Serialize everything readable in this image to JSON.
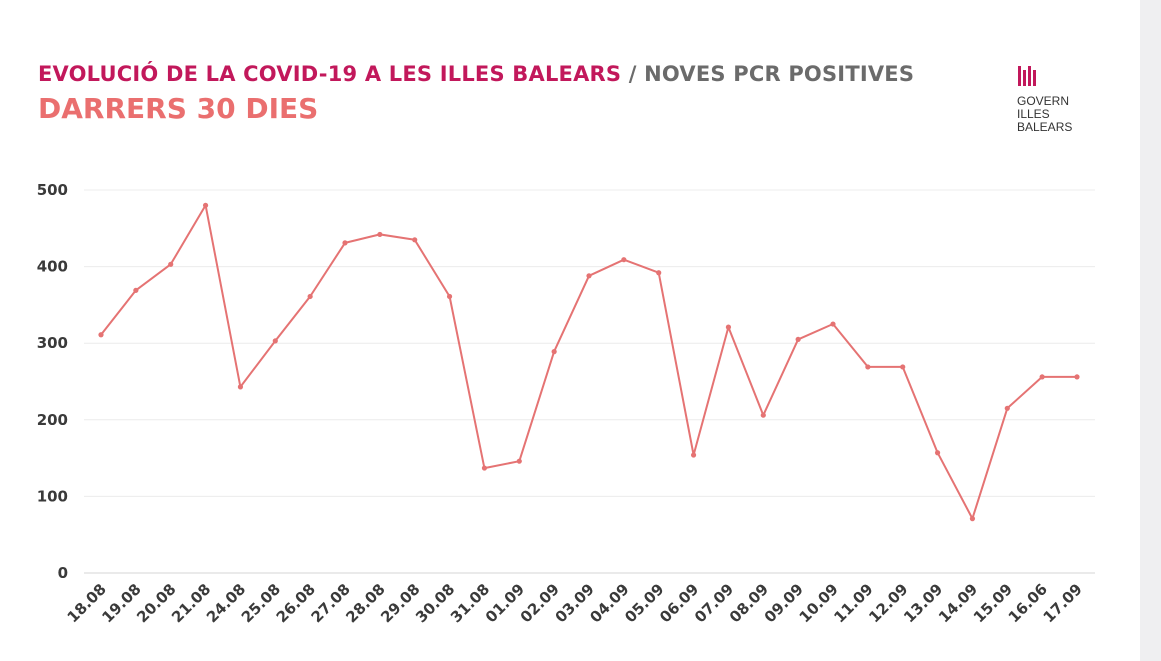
{
  "header": {
    "title_main": "EVOLUCIÓ DE LA COVID-19 A LES ILLES BALEARS",
    "title_sep": "/",
    "title_sub": "NOVES PCR POSITIVES",
    "subtitle": "DARRERS 30 DIES"
  },
  "logo": {
    "line1": "GOVERN",
    "line2": "ILLES",
    "line3": "BALEARS"
  },
  "colors": {
    "line": "#e57373",
    "title": "#c2185b",
    "subtitle": "#ea6f6f",
    "grid": "#ececec"
  },
  "chart_data": {
    "type": "line",
    "title": "",
    "xlabel": "",
    "ylabel": "",
    "ylim": [
      0,
      500
    ],
    "yticks": [
      0,
      100,
      200,
      300,
      400,
      500
    ],
    "grid": true,
    "categories": [
      "18.08",
      "19.08",
      "20.08",
      "21.08",
      "24.08",
      "25.08",
      "26.08",
      "27.08",
      "28.08",
      "29.08",
      "30.08",
      "31.08",
      "01.09",
      "02.09",
      "03.09",
      "04.09",
      "05.09",
      "06.09",
      "07.09",
      "08.09",
      "09.09",
      "10.09",
      "11.09",
      "12.09",
      "13.09",
      "14.09",
      "15.09",
      "16.06",
      "17.09"
    ],
    "series": [
      {
        "values": [
          311,
          369,
          403,
          480,
          243,
          303,
          361,
          431,
          442,
          435,
          361,
          137,
          146,
          289,
          388,
          409,
          392,
          154,
          321,
          206,
          305,
          325,
          269,
          269,
          157,
          71,
          215,
          256,
          256
        ]
      }
    ]
  }
}
